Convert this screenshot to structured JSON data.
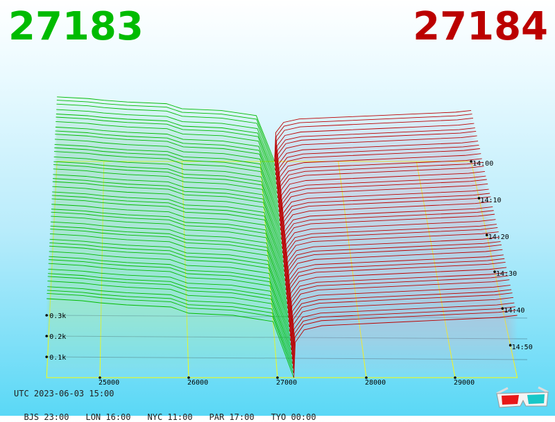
{
  "header": {
    "bid": "27183",
    "ask": "27184"
  },
  "colors": {
    "bid": "#00bb00",
    "ask": "#bb0000",
    "grid": "#ffff00",
    "magenta": "#dd00dd"
  },
  "footer": {
    "utc": "UTC 2023-06-03 15:00",
    "zones": [
      "BJS 23:00",
      "LON 16:00",
      "NYC 11:00",
      "PAR 17:00",
      "TYO 00:00"
    ]
  },
  "chart_data": {
    "type": "area",
    "price_ticks": [
      25000,
      26000,
      27000,
      28000,
      29000
    ],
    "depth_ticks": [
      "0.1k",
      "0.2k",
      "0.3k"
    ],
    "time_ticks": [
      "14:00",
      "14:10",
      "14:20",
      "14:30",
      "14:40",
      "14:50"
    ],
    "bid_side": {
      "price": [
        24400,
        24800,
        25000,
        25300,
        25800,
        26000,
        26500,
        26800,
        26950,
        27183
      ],
      "depth": [
        0.38,
        0.37,
        0.36,
        0.35,
        0.34,
        0.31,
        0.3,
        0.28,
        0.27,
        0.0
      ]
    },
    "ask_side": {
      "price": [
        27184,
        27200,
        27300,
        27500,
        28000,
        28500,
        29000,
        29500,
        29700
      ],
      "depth": [
        0.0,
        0.17,
        0.23,
        0.25,
        0.26,
        0.27,
        0.28,
        0.29,
        0.3
      ]
    }
  }
}
